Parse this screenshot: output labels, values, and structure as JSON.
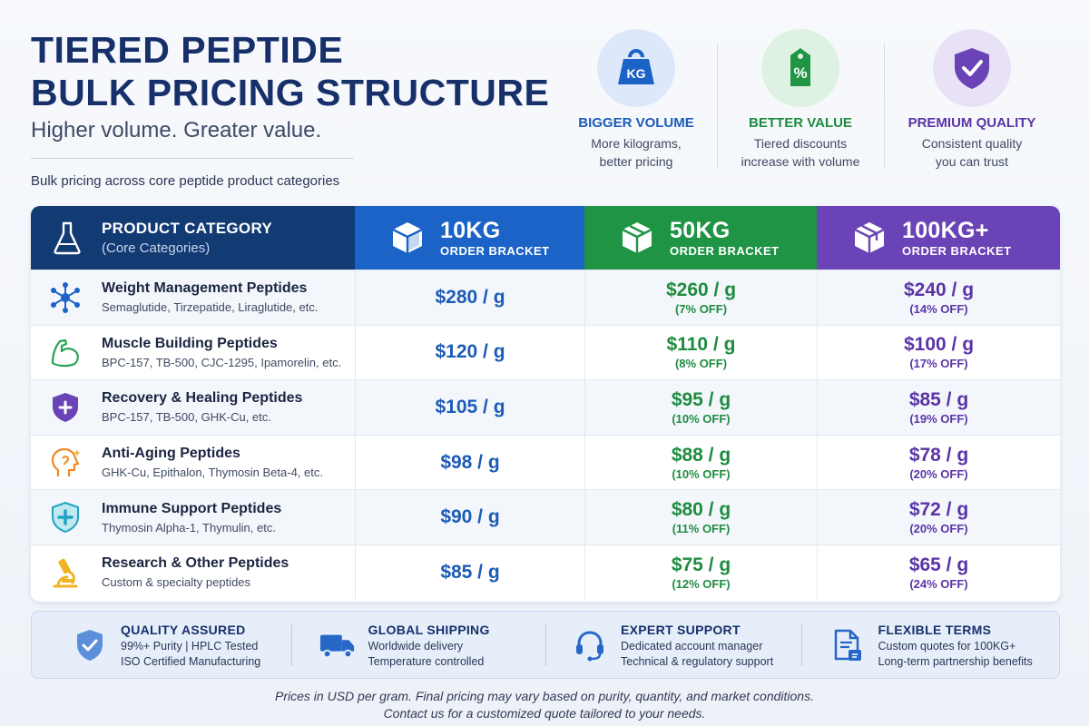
{
  "header": {
    "title_line1": "TIERED PEPTIDE",
    "title_line2": "BULK PRICING STRUCTURE",
    "tagline": "Higher volume. Greater value.",
    "subcaption": "Bulk pricing across core peptide product categories"
  },
  "features": [
    {
      "icon": "kg-weight-icon",
      "icon_text": "KG",
      "title": "BIGGER VOLUME",
      "desc_line1": "More kilograms,",
      "desc_line2": "better pricing",
      "color": "#1c63c7"
    },
    {
      "icon": "percent-tag-icon",
      "icon_text": "%",
      "title": "BETTER VALUE",
      "desc_line1": "Tiered discounts",
      "desc_line2": "increase with volume",
      "color": "#1e9444"
    },
    {
      "icon": "shield-check-icon",
      "title": "PREMIUM QUALITY",
      "desc_line1": "Consistent quality",
      "desc_line2": "you can trust",
      "color": "#6a43b6"
    }
  ],
  "table": {
    "header": {
      "category_label": "PRODUCT CATEGORY",
      "category_sub": "(Core Categories)",
      "tiers": [
        {
          "big": "10KG",
          "small": "ORDER BRACKET",
          "color": "#1c63c7"
        },
        {
          "big": "50KG",
          "small": "ORDER BRACKET",
          "color": "#1e9444"
        },
        {
          "big": "100KG+",
          "small": "ORDER BRACKET",
          "color": "#6a43b6"
        }
      ]
    },
    "rows": [
      {
        "icon": "molecule-icon",
        "name": "Weight Management Peptides",
        "sub": "Semaglutide, Tirzepatide, Liraglutide, etc.",
        "p10": "$280 / g",
        "p50": "$260 / g",
        "o50": "(7% OFF)",
        "p100": "$240 / g",
        "o100": "(14% OFF)"
      },
      {
        "icon": "flexed-arm-icon",
        "name": "Muscle Building Peptides",
        "sub": "BPC-157, TB-500, CJC-1295, Ipamorelin, etc.",
        "p10": "$120 / g",
        "p50": "$110 / g",
        "o50": "(8% OFF)",
        "p100": "$100 / g",
        "o100": "(17% OFF)"
      },
      {
        "icon": "shield-plus-icon",
        "name": "Recovery & Healing Peptides",
        "sub": "BPC-157, TB-500, GHK-Cu, etc.",
        "p10": "$105 / g",
        "p50": "$95 / g",
        "o50": "(10% OFF)",
        "p100": "$85 / g",
        "o100": "(19% OFF)"
      },
      {
        "icon": "head-sparkle-icon",
        "name": "Anti-Aging Peptides",
        "sub": "GHK-Cu, Epithalon, Thymosin Beta-4, etc.",
        "p10": "$98 / g",
        "p50": "$88 / g",
        "o50": "(10% OFF)",
        "p100": "$78 / g",
        "o100": "(20% OFF)"
      },
      {
        "icon": "shield-cross-icon",
        "name": "Immune Support Peptides",
        "sub": "Thymosin Alpha-1, Thymulin, etc.",
        "p10": "$90 / g",
        "p50": "$80 / g",
        "o50": "(11% OFF)",
        "p100": "$72 / g",
        "o100": "(20% OFF)"
      },
      {
        "icon": "microscope-icon",
        "name": "Research & Other Peptides",
        "sub": "Custom & specialty peptides",
        "p10": "$85 / g",
        "p50": "$75 / g",
        "o50": "(12% OFF)",
        "p100": "$65 / g",
        "o100": "(24% OFF)"
      }
    ]
  },
  "strip": [
    {
      "icon": "shield-check-icon",
      "title": "QUALITY ASSURED",
      "line1": "99%+ Purity | HPLC Tested",
      "line2": "ISO Certified Manufacturing"
    },
    {
      "icon": "truck-icon",
      "title": "GLOBAL SHIPPING",
      "line1": "Worldwide delivery",
      "line2": "Temperature controlled"
    },
    {
      "icon": "headset-icon",
      "title": "EXPERT SUPPORT",
      "line1": "Dedicated account manager",
      "line2": "Technical & regulatory support"
    },
    {
      "icon": "document-icon",
      "title": "FLEXIBLE TERMS",
      "line1": "Custom quotes for 100KG+",
      "line2": "Long-term partnership benefits"
    }
  ],
  "footnote": {
    "line1": "Prices in USD per gram. Final pricing may vary based on purity, quantity, and market conditions.",
    "line2": "Contact us for a customized quote tailored to your needs."
  }
}
